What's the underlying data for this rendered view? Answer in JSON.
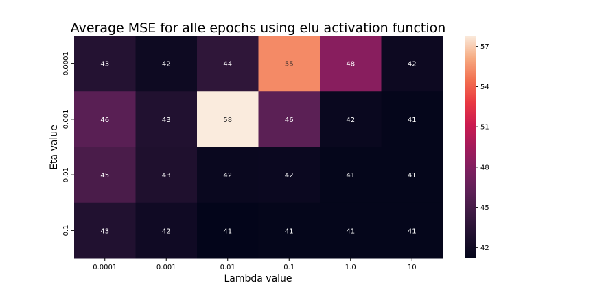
{
  "chart_data": {
    "type": "heatmap",
    "title": "Average MSE for alle epochs using elu activation function",
    "xlabel": "Lambda value",
    "ylabel": "Eta value",
    "x_categories": [
      "0.0001",
      "0.001",
      "0.01",
      "0.1",
      "1.0",
      "10"
    ],
    "y_categories": [
      "0.0001",
      "0.001",
      "0.01",
      "0.1"
    ],
    "values": [
      [
        43.2,
        41.9,
        43.8,
        55.2,
        48.3,
        41.8
      ],
      [
        46.0,
        43.0,
        57.8,
        46.1,
        41.6,
        41.3
      ],
      [
        45.2,
        42.9,
        41.6,
        41.7,
        41.3,
        41.3
      ],
      [
        43.0,
        42.0,
        41.2,
        41.3,
        41.3,
        41.3
      ]
    ],
    "annotations": [
      [
        "43",
        "42",
        "44",
        "55",
        "48",
        "42"
      ],
      [
        "46",
        "43",
        "58",
        "46",
        "42",
        "41"
      ],
      [
        "45",
        "43",
        "42",
        "42",
        "41",
        "41"
      ],
      [
        "43",
        "42",
        "41",
        "41",
        "41",
        "41"
      ]
    ],
    "colorbar": {
      "range": [
        41.2,
        57.8
      ],
      "ticks": [
        "42",
        "45",
        "48",
        "51",
        "54",
        "57"
      ]
    },
    "colormap": "rocket"
  }
}
